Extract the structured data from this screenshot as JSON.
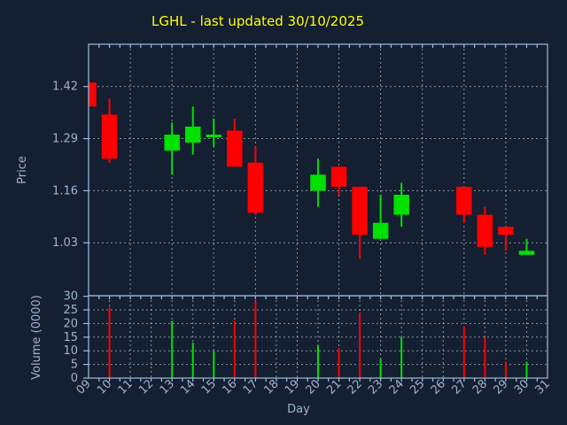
{
  "title": {
    "text": "LGHL - last updated 30/10/2025",
    "color": "#ffff00"
  },
  "colors": {
    "background": "#141f31",
    "up": "#00e100",
    "down": "#ff0000",
    "axis": "#9ebfde",
    "text": "#9db5d1",
    "grid": "#dce1e7"
  },
  "chart_data": [
    {
      "type": "candlestick",
      "title": "LGHL - last updated 30/10/2025",
      "xlabel": "Day",
      "ylabel": "Price",
      "x_ticks": [
        "09",
        "10",
        "11",
        "12",
        "13",
        "14",
        "15",
        "16",
        "17",
        "18",
        "19",
        "20",
        "21",
        "22",
        "23",
        "24",
        "25",
        "26",
        "27",
        "28",
        "29",
        "30",
        "31"
      ],
      "y_ticks": [
        1.03,
        1.16,
        1.29,
        1.42
      ],
      "ylim": [
        0.898,
        1.5254
      ],
      "xlim": [
        9,
        31
      ],
      "grid": true,
      "legend": "none",
      "candles": [
        {
          "day": 9,
          "open": 1.43,
          "high": 1.43,
          "low": 1.37,
          "close": 1.37,
          "color": "down"
        },
        {
          "day": 10,
          "open": 1.35,
          "high": 1.39,
          "low": 1.23,
          "close": 1.24,
          "color": "down"
        },
        {
          "day": 13,
          "open": 1.26,
          "high": 1.33,
          "low": 1.2,
          "close": 1.3,
          "color": "up"
        },
        {
          "day": 14,
          "open": 1.28,
          "high": 1.37,
          "low": 1.25,
          "close": 1.32,
          "color": "up"
        },
        {
          "day": 15,
          "open": 1.295,
          "high": 1.34,
          "low": 1.27,
          "close": 1.3,
          "color": "up"
        },
        {
          "day": 16,
          "open": 1.31,
          "high": 1.34,
          "low": 1.22,
          "close": 1.22,
          "color": "down"
        },
        {
          "day": 17,
          "open": 1.23,
          "high": 1.27,
          "low": 1.1,
          "close": 1.105,
          "color": "down"
        },
        {
          "day": 20,
          "open": 1.16,
          "high": 1.24,
          "low": 1.12,
          "close": 1.2,
          "color": "up"
        },
        {
          "day": 21,
          "open": 1.22,
          "high": 1.22,
          "low": 1.15,
          "close": 1.17,
          "color": "down"
        },
        {
          "day": 22,
          "open": 1.17,
          "high": 1.17,
          "low": 0.99,
          "close": 1.05,
          "color": "down"
        },
        {
          "day": 23,
          "open": 1.04,
          "high": 1.15,
          "low": 1.04,
          "close": 1.08,
          "color": "up"
        },
        {
          "day": 24,
          "open": 1.1,
          "high": 1.18,
          "low": 1.07,
          "close": 1.15,
          "color": "up"
        },
        {
          "day": 27,
          "open": 1.17,
          "high": 1.17,
          "low": 1.08,
          "close": 1.1,
          "color": "down"
        },
        {
          "day": 28,
          "open": 1.1,
          "high": 1.12,
          "low": 1.0,
          "close": 1.02,
          "color": "down"
        },
        {
          "day": 29,
          "open": 1.07,
          "high": 1.07,
          "low": 1.01,
          "close": 1.05,
          "color": "down"
        },
        {
          "day": 30,
          "open": 1.0,
          "high": 1.04,
          "low": 1.0,
          "close": 1.01,
          "color": "up"
        }
      ]
    },
    {
      "type": "bar",
      "ylabel": "Volume (0000)",
      "y_ticks": [
        0,
        5,
        10,
        15,
        20,
        25,
        30
      ],
      "ylim": [
        0,
        30.2
      ],
      "grid": true,
      "bars": [
        {
          "day": 10,
          "value": 26,
          "color": "down"
        },
        {
          "day": 13,
          "value": 21,
          "color": "up"
        },
        {
          "day": 14,
          "value": 13,
          "color": "up"
        },
        {
          "day": 15,
          "value": 10,
          "color": "up"
        },
        {
          "day": 16,
          "value": 21,
          "color": "down"
        },
        {
          "day": 17,
          "value": 28,
          "color": "down"
        },
        {
          "day": 20,
          "value": 12,
          "color": "up"
        },
        {
          "day": 21,
          "value": 11,
          "color": "down"
        },
        {
          "day": 22,
          "value": 24,
          "color": "down"
        },
        {
          "day": 23,
          "value": 7,
          "color": "up"
        },
        {
          "day": 24,
          "value": 15,
          "color": "up"
        },
        {
          "day": 27,
          "value": 19,
          "color": "down"
        },
        {
          "day": 28,
          "value": 15,
          "color": "down"
        },
        {
          "day": 29,
          "value": 6,
          "color": "down"
        },
        {
          "day": 30,
          "value": 6,
          "color": "up"
        }
      ]
    }
  ]
}
